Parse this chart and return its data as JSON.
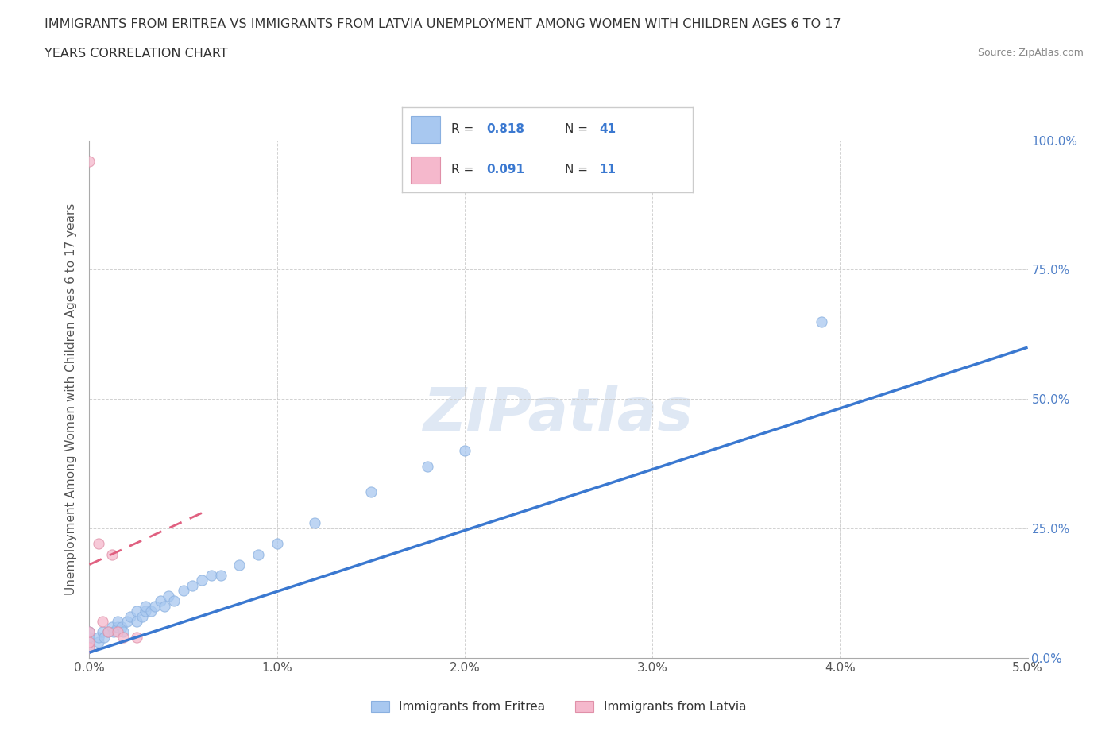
{
  "title_line1": "IMMIGRANTS FROM ERITREA VS IMMIGRANTS FROM LATVIA UNEMPLOYMENT AMONG WOMEN WITH CHILDREN AGES 6 TO 17",
  "title_line2": "YEARS CORRELATION CHART",
  "source": "Source: ZipAtlas.com",
  "ylabel": "Unemployment Among Women with Children Ages 6 to 17 years",
  "xlim": [
    0.0,
    5.0
  ],
  "ylim": [
    0.0,
    100.0
  ],
  "xticks": [
    0.0,
    1.0,
    2.0,
    3.0,
    4.0,
    5.0
  ],
  "yticks": [
    0.0,
    25.0,
    50.0,
    75.0,
    100.0
  ],
  "ytick_labels": [
    "0.0%",
    "25.0%",
    "50.0%",
    "75.0%",
    "100.0%"
  ],
  "xtick_labels": [
    "0.0%",
    "1.0%",
    "2.0%",
    "3.0%",
    "4.0%",
    "5.0%"
  ],
  "eritrea_color": "#a8c8f0",
  "latvia_color": "#f5b8cc",
  "trend_eritrea_color": "#3a78d0",
  "trend_latvia_color": "#e06080",
  "label_eritrea": "Immigrants from Eritrea",
  "label_latvia": "Immigrants from Latvia",
  "watermark": "ZIPatlas",
  "background_color": "#ffffff",
  "grid_color": "#cccccc",
  "eritrea_x": [
    0.0,
    0.0,
    0.0,
    0.0,
    0.05,
    0.05,
    0.07,
    0.08,
    0.1,
    0.12,
    0.13,
    0.15,
    0.15,
    0.17,
    0.18,
    0.2,
    0.22,
    0.25,
    0.25,
    0.28,
    0.3,
    0.3,
    0.33,
    0.35,
    0.38,
    0.4,
    0.42,
    0.45,
    0.5,
    0.55,
    0.6,
    0.65,
    0.7,
    0.8,
    0.9,
    1.0,
    1.2,
    1.5,
    1.8,
    2.0,
    3.9
  ],
  "eritrea_y": [
    2,
    3,
    4,
    5,
    3,
    4,
    5,
    4,
    5,
    6,
    5,
    6,
    7,
    6,
    5,
    7,
    8,
    7,
    9,
    8,
    9,
    10,
    9,
    10,
    11,
    10,
    12,
    11,
    13,
    14,
    15,
    16,
    16,
    18,
    20,
    22,
    26,
    32,
    37,
    40,
    65
  ],
  "latvia_x": [
    0.0,
    0.0,
    0.0,
    0.0,
    0.05,
    0.07,
    0.1,
    0.12,
    0.15,
    0.18,
    0.25
  ],
  "latvia_y": [
    2,
    3,
    5,
    96,
    22,
    7,
    5,
    20,
    5,
    4,
    4
  ],
  "eritrea_trend_x": [
    0.0,
    5.0
  ],
  "eritrea_trend_y": [
    1.0,
    60.0
  ],
  "latvia_trend_x": [
    0.0,
    0.6
  ],
  "latvia_trend_y": [
    18.0,
    28.0
  ]
}
